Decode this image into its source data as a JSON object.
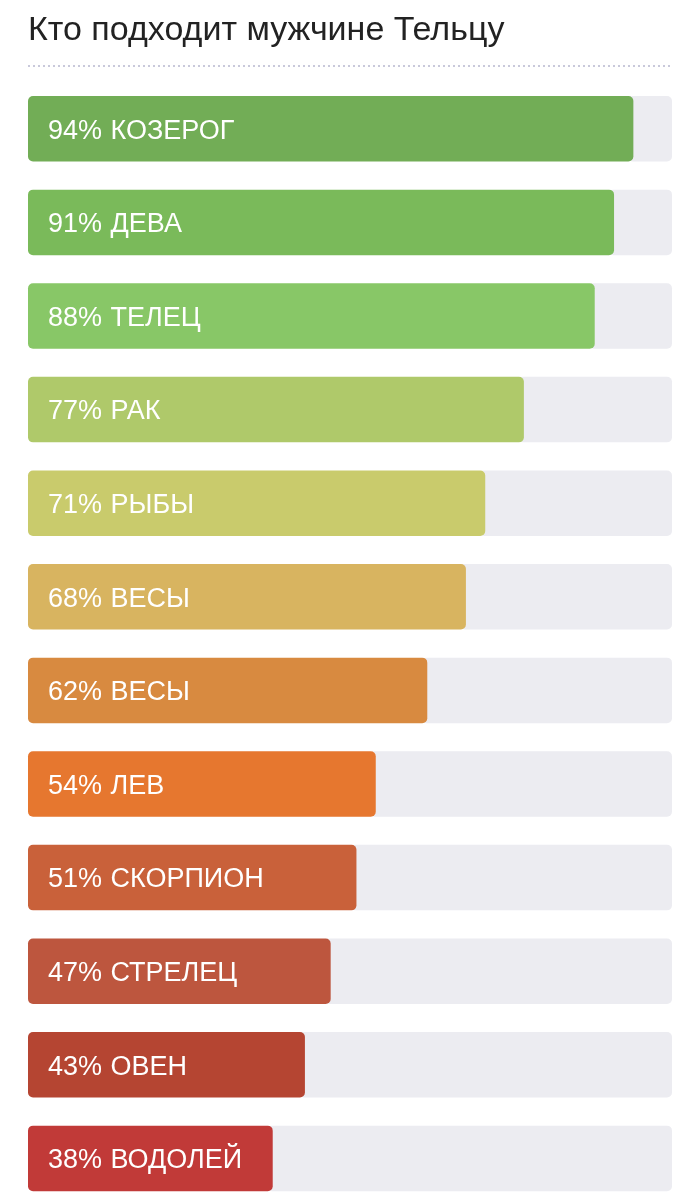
{
  "chart_data": {
    "type": "bar",
    "orientation": "horizontal",
    "title": "Кто подходит мужчине Тельцу",
    "categories": [
      "КОЗЕРОГ",
      "ДЕВА",
      "ТЕЛЕЦ",
      "РАК",
      "РЫБЫ",
      "ВЕСЫ",
      "ВЕСЫ",
      "ЛЕВ",
      "СКОРПИОН",
      "СТРЕЛЕЦ",
      "ОВЕН",
      "ВОДОЛЕЙ"
    ],
    "values": [
      94,
      91,
      88,
      77,
      71,
      68,
      62,
      54,
      51,
      47,
      43,
      38
    ],
    "value_labels": [
      "94%",
      "91%",
      "88%",
      "77%",
      "71%",
      "68%",
      "62%",
      "54%",
      "51%",
      "47%",
      "43%",
      "38%"
    ],
    "colors": [
      "#72ad56",
      "#7aba5a",
      "#88c767",
      "#afc96a",
      "#c9cb6c",
      "#d8b460",
      "#d88a40",
      "#e6772f",
      "#c9613a",
      "#bd563e",
      "#b54532",
      "#c13a38"
    ],
    "xlim": [
      0,
      100
    ]
  }
}
